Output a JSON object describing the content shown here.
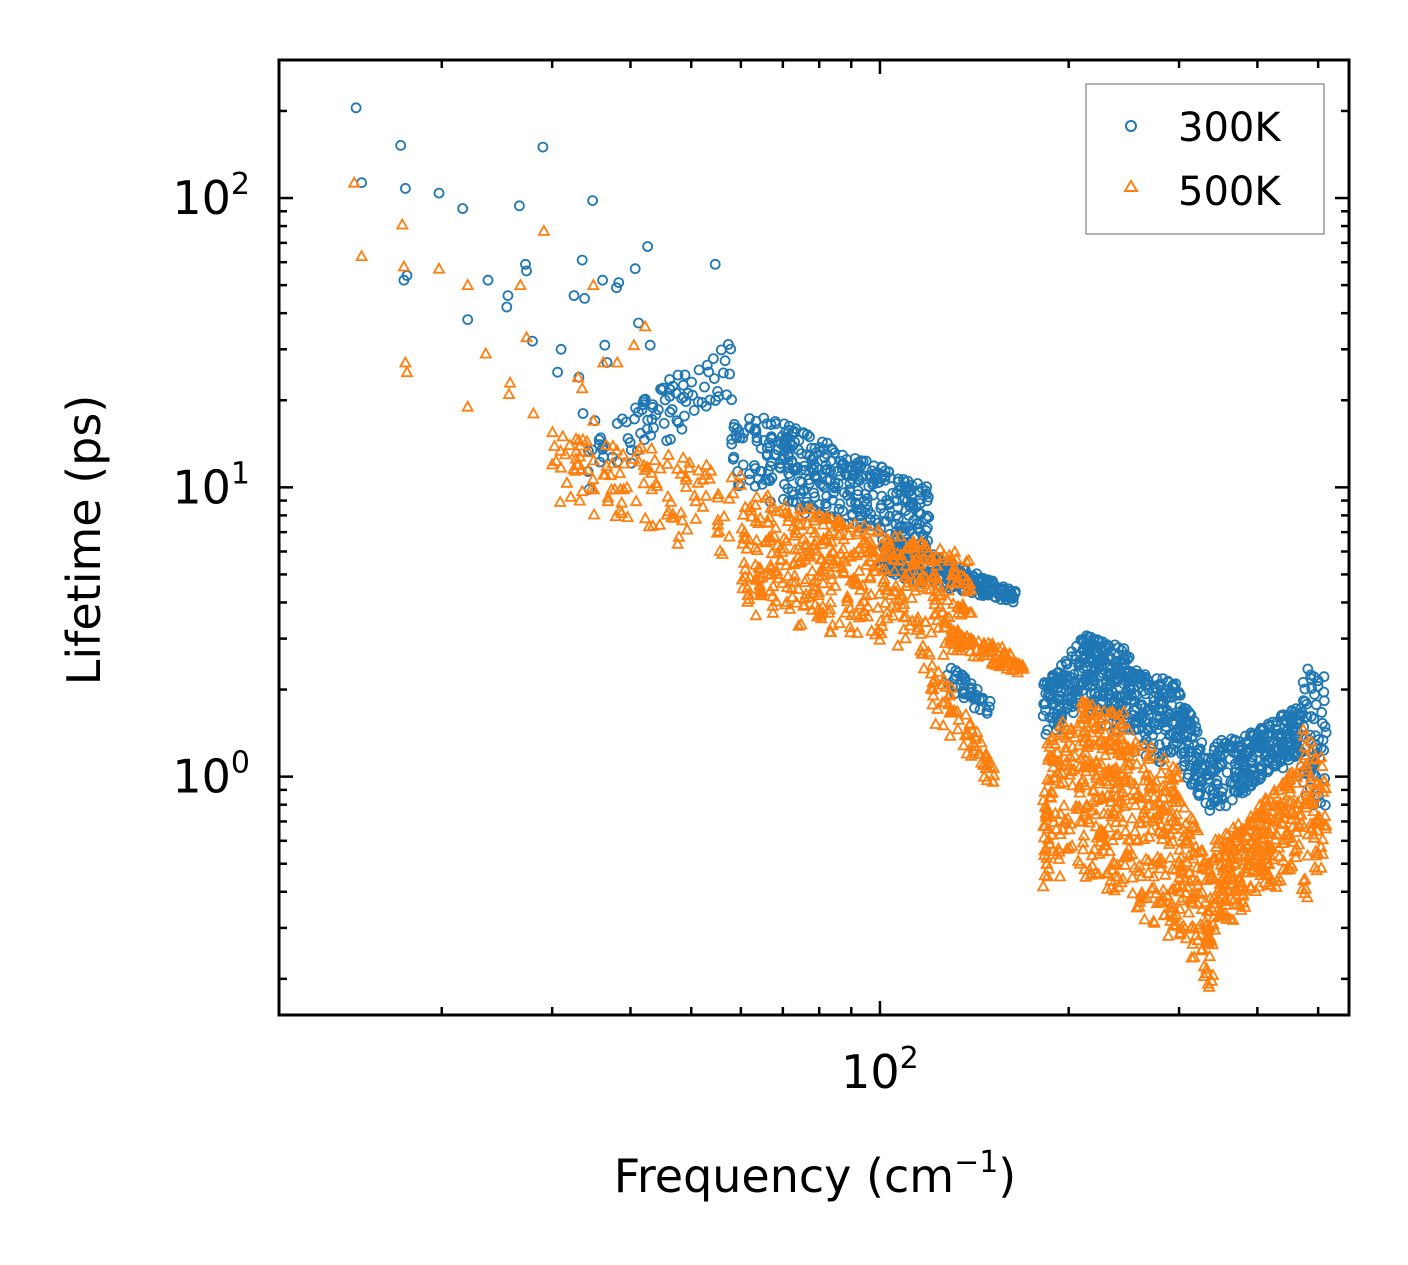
{
  "chart_data": {
    "type": "scatter",
    "title": "",
    "xlabel": "Frequency (cm",
    "xlabel_sup": "−1",
    "xlabel_close": ")",
    "ylabel": "Lifetime (ps)",
    "xscale": "log",
    "yscale": "log",
    "xlim": [
      11,
      560
    ],
    "ylim": [
      0.15,
      300
    ],
    "x_major_ticks": [
      {
        "value": 100,
        "base": "10",
        "exp": "2"
      }
    ],
    "y_major_ticks": [
      {
        "value": 1,
        "base": "10",
        "exp": "0"
      },
      {
        "value": 10,
        "base": "10",
        "exp": "1"
      },
      {
        "value": 100,
        "base": "10",
        "exp": "2"
      }
    ],
    "legend_position": "top-right",
    "series": [
      {
        "name": "300K",
        "color": "#1f77b4",
        "marker": "circle",
        "hand_points": [
          [
            14.6,
            205
          ],
          [
            14.9,
            113
          ],
          [
            17.2,
            152
          ],
          [
            17.5,
            108
          ],
          [
            17.4,
            52
          ],
          [
            17.6,
            54
          ],
          [
            19.8,
            104
          ],
          [
            21.6,
            92
          ],
          [
            22.0,
            38
          ],
          [
            23.7,
            52
          ],
          [
            25.4,
            42
          ],
          [
            25.5,
            46
          ],
          [
            26.6,
            94
          ],
          [
            27.2,
            59
          ],
          [
            27.3,
            56
          ],
          [
            27.9,
            32
          ],
          [
            29.0,
            150
          ],
          [
            30.6,
            25
          ],
          [
            31.0,
            30
          ],
          [
            32.5,
            46
          ],
          [
            33.5,
            61
          ],
          [
            33.8,
            45
          ],
          [
            34.8,
            98
          ],
          [
            36.1,
            52
          ],
          [
            36.4,
            31
          ],
          [
            38.0,
            49
          ],
          [
            38.3,
            51
          ],
          [
            40.7,
            57
          ],
          [
            42.6,
            68
          ],
          [
            41.2,
            37
          ],
          [
            43.0,
            31
          ],
          [
            54.6,
            59
          ],
          [
            33.1,
            24
          ],
          [
            36.7,
            27
          ],
          [
            33.6,
            18
          ],
          [
            35.1,
            17
          ]
        ],
        "clusters": [
          {
            "x": [
              34,
              58
            ],
            "ylog": [
              [
                1.15,
                1.55
              ],
              [
                0.98,
                1.3
              ]
            ],
            "n": 90
          },
          {
            "x": [
              58,
              120
            ],
            "ylog": [
              [
                1.3,
                1.0
              ],
              [
                0.98,
                0.78
              ]
            ],
            "n": 380
          },
          {
            "x": [
              100,
              165
            ],
            "ylog": [
              [
                0.85,
                0.64
              ],
              [
                0.7,
                0.6
              ]
            ],
            "n": 260
          },
          {
            "x": [
              128,
              150
            ],
            "ylog": [
              [
                0.4,
                0.26
              ],
              [
                0.3,
                0.2
              ]
            ],
            "n": 40
          },
          {
            "x": [
              182,
              210
            ],
            "ylog": [
              [
                0.32,
                0.48
              ],
              [
                0.12,
                0.24
              ]
            ],
            "n": 110
          },
          {
            "x": [
              210,
              250
            ],
            "ylog": [
              [
                0.5,
                0.44
              ],
              [
                0.22,
                0.12
              ]
            ],
            "n": 200
          },
          {
            "x": [
              250,
              300
            ],
            "ylog": [
              [
                0.38,
                0.32
              ],
              [
                0.06,
                0.04
              ]
            ],
            "n": 150
          },
          {
            "x": [
              300,
              340
            ],
            "ylog": [
              [
                0.3,
                0.06
              ],
              [
                0.04,
                -0.15
              ]
            ],
            "n": 110
          },
          {
            "x": [
              340,
              400
            ],
            "ylog": [
              [
                0.12,
                0.16
              ],
              [
                -0.14,
                -0.02
              ]
            ],
            "n": 130
          },
          {
            "x": [
              400,
              470
            ],
            "ylog": [
              [
                0.16,
                0.26
              ],
              [
                -0.02,
                0.06
              ]
            ],
            "n": 140
          },
          {
            "x": [
              470,
              515
            ],
            "ylog": [
              [
                0.4,
                0.36
              ],
              [
                -0.1,
                -0.1
              ]
            ],
            "n": 60
          }
        ]
      },
      {
        "name": "500K",
        "color": "#ff7f0e",
        "marker": "triangle",
        "hand_points": [
          [
            14.5,
            113
          ],
          [
            14.9,
            63
          ],
          [
            17.3,
            81
          ],
          [
            17.4,
            58
          ],
          [
            17.5,
            27
          ],
          [
            17.6,
            25
          ],
          [
            19.8,
            57
          ],
          [
            22.0,
            50
          ],
          [
            22.0,
            19
          ],
          [
            23.5,
            29
          ],
          [
            25.6,
            21
          ],
          [
            25.7,
            23
          ],
          [
            26.7,
            50
          ],
          [
            27.3,
            33
          ],
          [
            28.0,
            18
          ],
          [
            29.1,
            77
          ],
          [
            31.2,
            15
          ],
          [
            31.5,
            13
          ],
          [
            33.0,
            24
          ],
          [
            33.5,
            22
          ],
          [
            33.2,
            9
          ],
          [
            34.9,
            50
          ],
          [
            36.2,
            27
          ],
          [
            38.1,
            27
          ],
          [
            40.5,
            31
          ],
          [
            42.2,
            36
          ],
          [
            34.9,
            17
          ],
          [
            36.6,
            14
          ],
          [
            30.0,
            12
          ],
          [
            32.0,
            14
          ]
        ],
        "clusters": [
          {
            "x": [
              30,
              60
            ],
            "ylog": [
              [
                1.2,
                1.08
              ],
              [
                0.92,
                0.74
              ]
            ],
            "n": 120
          },
          {
            "x": [
              60,
              140
            ],
            "ylog": [
              [
                1.0,
                0.76
              ],
              [
                0.54,
                0.4
              ]
            ],
            "n": 480
          },
          {
            "x": [
              115,
              140
            ],
            "ylog": [
              [
                0.5,
                0.2
              ],
              [
                0.2,
                0.02
              ]
            ],
            "n": 45
          },
          {
            "x": [
              140,
              152
            ],
            "ylog": [
              [
                0.2,
                0.04
              ],
              [
                0.02,
                -0.04
              ]
            ],
            "n": 25
          },
          {
            "x": [
              128,
              170
            ],
            "ylog": [
              [
                0.52,
                0.42
              ],
              [
                0.44,
                0.35
              ]
            ],
            "n": 90
          },
          {
            "x": [
              182,
              210
            ],
            "ylog": [
              [
                0.12,
                0.26
              ],
              [
                -0.4,
                -0.34
              ]
            ],
            "n": 120
          },
          {
            "x": [
              210,
              250
            ],
            "ylog": [
              [
                0.28,
                0.22
              ],
              [
                -0.34,
                -0.44
              ]
            ],
            "n": 220
          },
          {
            "x": [
              250,
              300
            ],
            "ylog": [
              [
                0.18,
                0.02
              ],
              [
                -0.52,
                -0.56
              ]
            ],
            "n": 160
          },
          {
            "x": [
              300,
              340
            ],
            "ylog": [
              [
                -0.04,
                -0.3
              ],
              [
                -0.58,
                -0.76
              ]
            ],
            "n": 120
          },
          {
            "x": [
              340,
              400
            ],
            "ylog": [
              [
                -0.22,
                -0.12
              ],
              [
                -0.56,
                -0.42
              ]
            ],
            "n": 150
          },
          {
            "x": [
              400,
              470
            ],
            "ylog": [
              [
                -0.1,
                0.06
              ],
              [
                -0.4,
                -0.36
              ]
            ],
            "n": 150
          },
          {
            "x": [
              470,
              515
            ],
            "ylog": [
              [
                0.2,
                0.06
              ],
              [
                -0.48,
                -0.3
              ]
            ],
            "n": 70
          }
        ]
      }
    ]
  }
}
